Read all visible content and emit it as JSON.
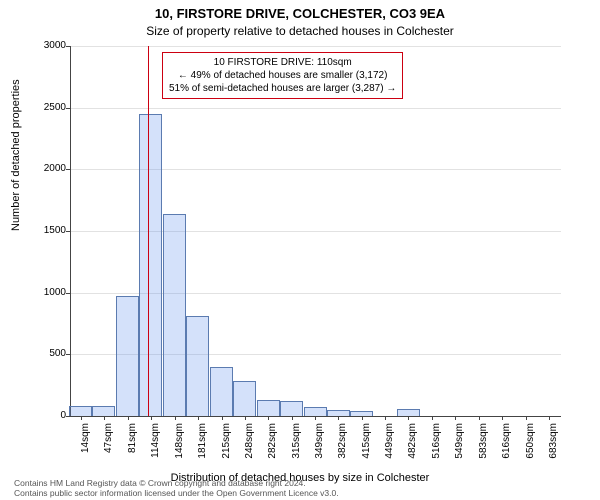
{
  "title": "10, FIRSTORE DRIVE, COLCHESTER, CO3 9EA",
  "subtitle": "Size of property relative to detached houses in Colchester",
  "ylabel": "Number of detached properties",
  "xlabel": "Distribution of detached houses by size in Colchester",
  "attribution_line1": "Contains HM Land Registry data © Crown copyright and database right 2024.",
  "attribution_line2": "Contains public sector information licensed under the Open Government Licence v3.0.",
  "chart": {
    "type": "histogram",
    "background_color": "#ffffff",
    "grid_color": "#e2e2e2",
    "axis_color": "#444444",
    "bar_fill": "rgba(100,149,237,0.28)",
    "bar_border": "#5b7bb0",
    "reference_line_color": "#cc0011",
    "ylim_max": 3000,
    "yticks": [
      0,
      500,
      1000,
      1500,
      2000,
      2500,
      3000
    ],
    "xtick_labels": [
      "14sqm",
      "47sqm",
      "81sqm",
      "114sqm",
      "148sqm",
      "181sqm",
      "215sqm",
      "248sqm",
      "282sqm",
      "315sqm",
      "349sqm",
      "382sqm",
      "415sqm",
      "449sqm",
      "482sqm",
      "516sqm",
      "549sqm",
      "583sqm",
      "616sqm",
      "650sqm",
      "683sqm"
    ],
    "xtick_values": [
      14,
      47,
      81,
      114,
      148,
      181,
      215,
      248,
      282,
      315,
      349,
      382,
      415,
      449,
      482,
      516,
      549,
      583,
      616,
      650,
      683
    ],
    "x_min": 0,
    "x_max": 700,
    "bin_width_sqm": 33,
    "bins": [
      {
        "x": 14,
        "count": 80
      },
      {
        "x": 47,
        "count": 80
      },
      {
        "x": 81,
        "count": 970
      },
      {
        "x": 114,
        "count": 2450
      },
      {
        "x": 148,
        "count": 1640
      },
      {
        "x": 181,
        "count": 810
      },
      {
        "x": 215,
        "count": 400
      },
      {
        "x": 248,
        "count": 280
      },
      {
        "x": 282,
        "count": 130
      },
      {
        "x": 315,
        "count": 120
      },
      {
        "x": 349,
        "count": 70
      },
      {
        "x": 382,
        "count": 50
      },
      {
        "x": 415,
        "count": 40
      },
      {
        "x": 449,
        "count": 0
      },
      {
        "x": 482,
        "count": 60
      },
      {
        "x": 516,
        "count": 0
      },
      {
        "x": 549,
        "count": 0
      },
      {
        "x": 583,
        "count": 0
      },
      {
        "x": 616,
        "count": 0
      },
      {
        "x": 650,
        "count": 0
      },
      {
        "x": 683,
        "count": 0
      }
    ],
    "reference_x_sqm": 110,
    "annotation": {
      "line1": "10 FIRSTORE DRIVE: 110sqm",
      "line2": "← 49% of detached houses are smaller (3,172)",
      "line3": "51% of semi-detached houses are larger (3,287) →"
    },
    "title_fontsize": 13,
    "subtitle_fontsize": 12,
    "label_fontsize": 11,
    "tick_fontsize": 10
  }
}
